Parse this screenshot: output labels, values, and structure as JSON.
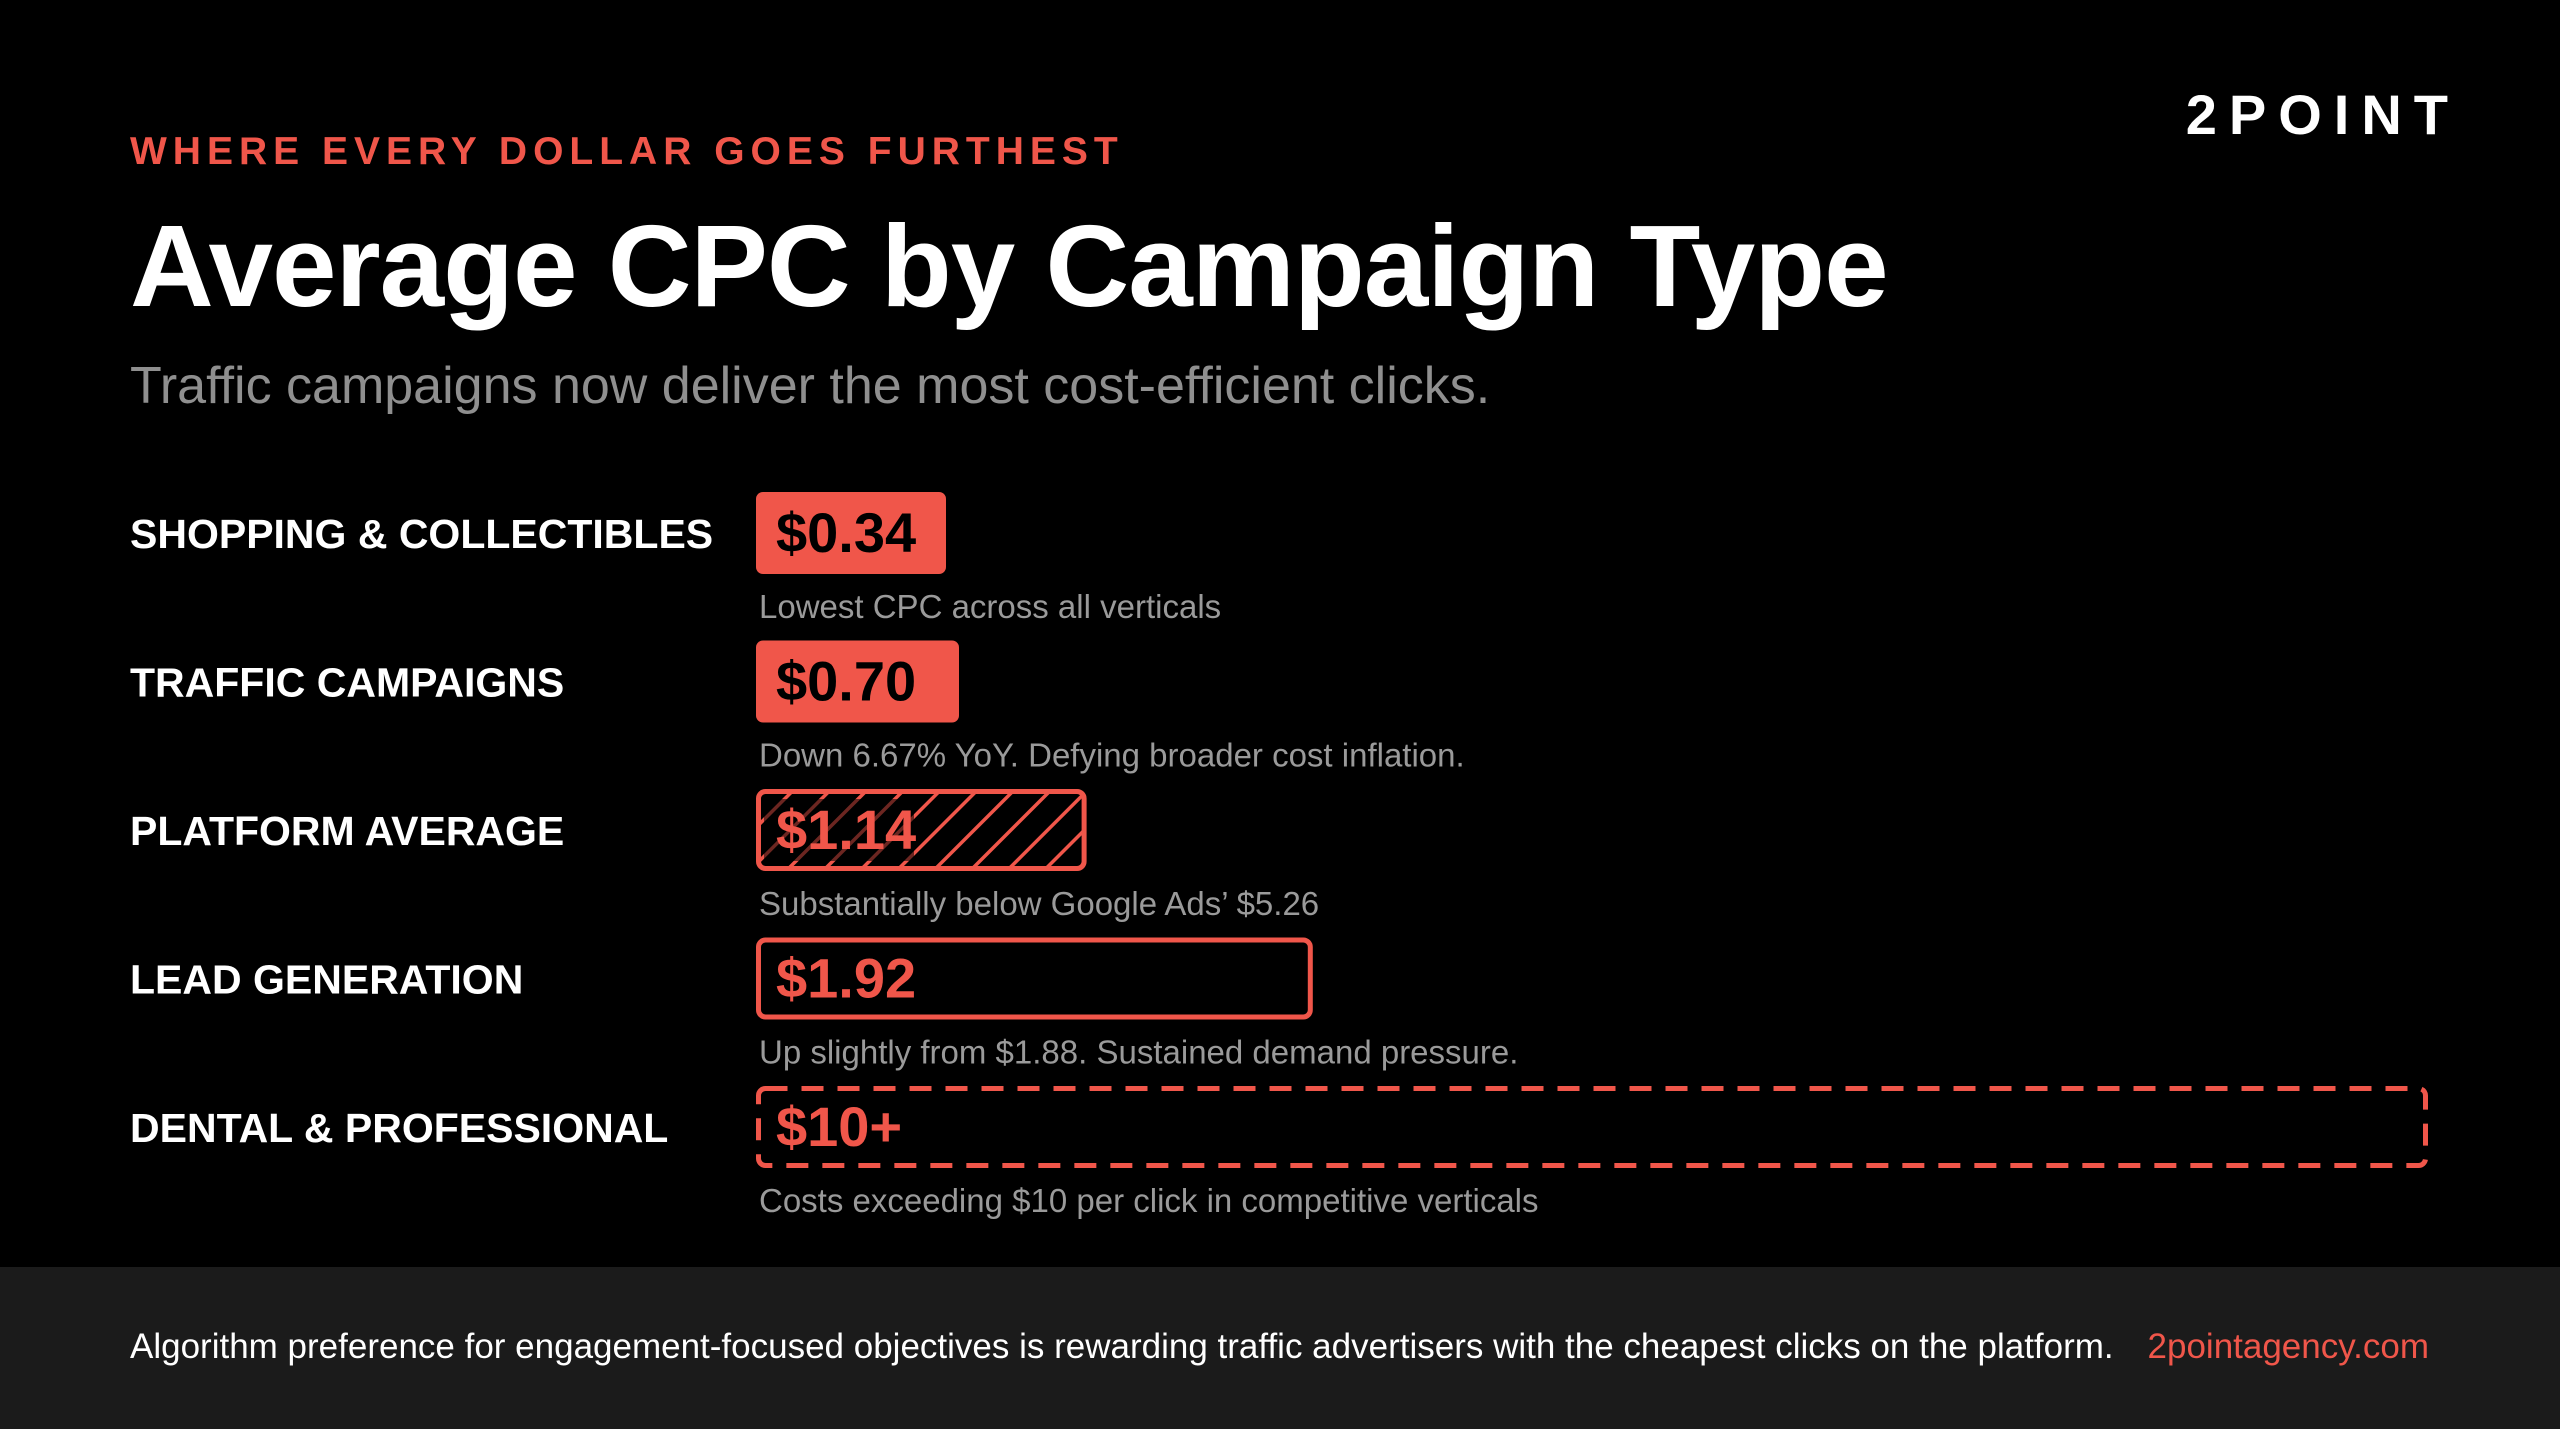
{
  "brand": "2POINT",
  "eyebrow": "WHERE EVERY DOLLAR GOES FURTHEST",
  "title": "Average CPC by Campaign Type",
  "subtitle": "Traffic campaigns now deliver the most cost-efficient clicks.",
  "colors": {
    "accent": "#f0564a",
    "background": "#000000",
    "footer_background": "#1b1b1b",
    "note_text": "#9a9a9a"
  },
  "chart_data": {
    "type": "bar",
    "orientation": "horizontal",
    "units": "USD per click",
    "title": "Average CPC by Campaign Type",
    "categories": [
      "SHOPPING & COLLECTIBLES",
      "TRAFFIC CAMPAIGNS",
      "PLATFORM AVERAGE",
      "LEAD GENERATION",
      "DENTAL & PROFESSIONAL"
    ],
    "values": [
      0.34,
      0.7,
      1.14,
      1.92,
      10
    ],
    "value_labels": [
      "$0.34",
      "$0.70",
      "$1.14",
      "$1.92",
      "$10+"
    ],
    "annotations": [
      "Lowest CPC across all verticals",
      "Down 6.67% YoY. Defying broader cost inflation.",
      "Substantially below Google Ads’ $5.26",
      "Up slightly from $1.88. Sustained demand pressure.",
      "Costs exceeding $10 per click in competitive verticals"
    ],
    "bar_styles": [
      "solid",
      "solid",
      "hatched",
      "outline",
      "dashed-outline"
    ],
    "axis_visible": false,
    "grid": false
  },
  "footer": {
    "text": "Algorithm preference for engagement-focused objectives is rewarding traffic advertisers with the cheapest clicks on the platform.",
    "link": "2pointagency.com"
  }
}
